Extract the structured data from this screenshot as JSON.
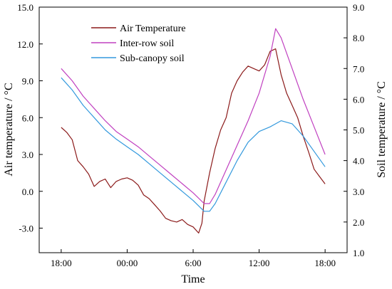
{
  "chart_data": {
    "type": "line",
    "xlabel": "Time",
    "ylabel_left": "Air temperature / °C",
    "ylabel_right": "Soil temperature / °C",
    "x_unit": "hours since 18:00",
    "xlim": [
      -2,
      26
    ],
    "x_ticks": [
      {
        "x": 0,
        "label": "18:00"
      },
      {
        "x": 6,
        "label": "00:00"
      },
      {
        "x": 12,
        "label": "6:00"
      },
      {
        "x": 18,
        "label": "12:00"
      },
      {
        "x": 24,
        "label": "18:00"
      }
    ],
    "ylim_left": [
      -5.0,
      15.0
    ],
    "y_ticks_left": [
      {
        "v": -3.0,
        "label": "-3.0"
      },
      {
        "v": 0.0,
        "label": "0.0"
      },
      {
        "v": 3.0,
        "label": "3.0"
      },
      {
        "v": 6.0,
        "label": "6.0"
      },
      {
        "v": 9.0,
        "label": "9.0"
      },
      {
        "v": 12.0,
        "label": "12.0"
      },
      {
        "v": 15.0,
        "label": "15.0"
      }
    ],
    "ylim_right": [
      1.0,
      9.0
    ],
    "y_ticks_right": [
      {
        "v": 1.0,
        "label": "1.0"
      },
      {
        "v": 2.0,
        "label": "2.0"
      },
      {
        "v": 3.0,
        "label": "3.0"
      },
      {
        "v": 4.0,
        "label": "4.0"
      },
      {
        "v": 5.0,
        "label": "5.0"
      },
      {
        "v": 6.0,
        "label": "6.0"
      },
      {
        "v": 7.0,
        "label": "7.0"
      },
      {
        "v": 8.0,
        "label": "8.0"
      },
      {
        "v": 9.0,
        "label": "9.0"
      }
    ],
    "grid": false,
    "legend_position": "top-left",
    "series": [
      {
        "name": "Air Temperature",
        "axis": "left",
        "color": "#8b1a1a",
        "x": [
          0.0,
          0.5,
          1.0,
          1.5,
          2.0,
          2.5,
          3.0,
          3.5,
          4.0,
          4.5,
          5.0,
          5.5,
          6.0,
          6.5,
          7.0,
          7.5,
          8.0,
          8.5,
          9.0,
          9.5,
          10.0,
          10.5,
          11.0,
          11.5,
          12.0,
          12.5,
          12.8,
          13.0,
          13.5,
          14.0,
          14.5,
          15.0,
          15.5,
          16.0,
          16.5,
          17.0,
          17.5,
          18.0,
          18.5,
          19.0,
          19.5,
          20.0,
          20.5,
          21.0,
          21.5,
          22.0,
          22.5,
          23.0,
          23.5,
          24.0
        ],
        "values": [
          5.2,
          4.8,
          4.2,
          2.5,
          2.0,
          1.4,
          0.4,
          0.8,
          1.0,
          0.3,
          0.8,
          1.0,
          1.1,
          0.9,
          0.5,
          -0.3,
          -0.6,
          -1.1,
          -1.6,
          -2.2,
          -2.4,
          -2.5,
          -2.3,
          -2.7,
          -2.9,
          -3.4,
          -2.6,
          -0.8,
          1.5,
          3.5,
          5.0,
          6.0,
          8.0,
          9.0,
          9.7,
          10.2,
          10.0,
          9.8,
          10.3,
          11.4,
          11.6,
          9.5,
          8.0,
          7.0,
          6.0,
          4.5,
          3.2,
          1.8,
          1.2,
          0.6
        ]
      },
      {
        "name": "Inter-row soil",
        "axis": "right",
        "color": "#c040c0",
        "x": [
          0.0,
          1.0,
          2.0,
          3.0,
          4.0,
          5.0,
          6.0,
          7.0,
          8.0,
          9.0,
          10.0,
          11.0,
          12.0,
          13.0,
          13.5,
          14.0,
          15.0,
          16.0,
          17.0,
          18.0,
          19.0,
          19.5,
          20.0,
          21.0,
          22.0,
          23.0,
          24.0
        ],
        "values": [
          7.0,
          6.6,
          6.1,
          5.7,
          5.3,
          4.95,
          4.7,
          4.45,
          4.15,
          3.85,
          3.55,
          3.25,
          2.95,
          2.6,
          2.6,
          2.9,
          3.7,
          4.5,
          5.3,
          6.2,
          7.4,
          8.3,
          8.0,
          7.0,
          6.0,
          5.1,
          4.2
        ]
      },
      {
        "name": "Sub-canopy soil",
        "axis": "right",
        "color": "#3399dd",
        "x": [
          0.0,
          1.0,
          2.0,
          3.0,
          4.0,
          5.0,
          6.0,
          7.0,
          8.0,
          9.0,
          10.0,
          11.0,
          12.0,
          13.0,
          13.5,
          14.0,
          15.0,
          16.0,
          17.0,
          18.0,
          19.0,
          20.0,
          21.0,
          22.0,
          23.0,
          24.0
        ],
        "values": [
          6.7,
          6.3,
          5.8,
          5.4,
          5.0,
          4.7,
          4.45,
          4.2,
          3.9,
          3.6,
          3.3,
          3.0,
          2.7,
          2.35,
          2.35,
          2.6,
          3.3,
          4.0,
          4.6,
          4.95,
          5.1,
          5.3,
          5.2,
          4.8,
          4.3,
          3.8
        ]
      }
    ]
  }
}
